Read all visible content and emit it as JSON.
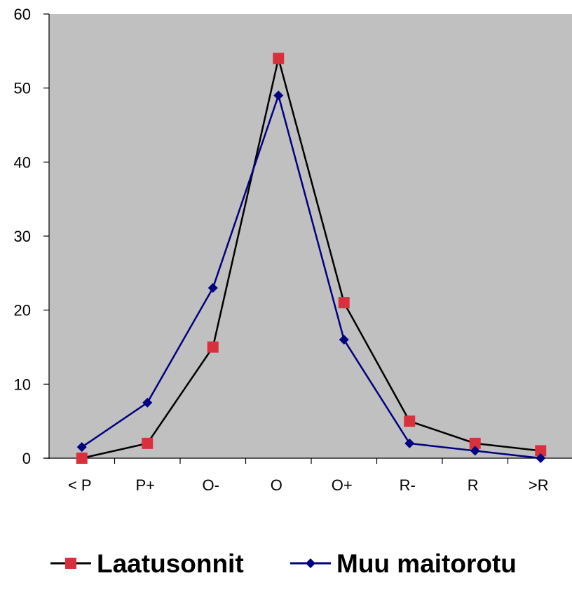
{
  "chart_data": {
    "type": "line",
    "categories": [
      "< P",
      "P+",
      "O-",
      "O",
      "O+",
      "R-",
      "R",
      ">R"
    ],
    "ylim": [
      0,
      60
    ],
    "yticks": [
      0,
      10,
      20,
      30,
      40,
      50,
      60
    ],
    "grid": false,
    "plot_background": "#c0c0c0",
    "legend_position": "bottom",
    "series": [
      {
        "name": "Laatusonnit",
        "values": [
          0,
          2,
          15,
          54,
          21,
          5,
          2,
          1
        ],
        "line_color": "#000000",
        "marker_color": "#d9303e",
        "marker": "square"
      },
      {
        "name": "Muu maitorotu",
        "values": [
          1.5,
          7.5,
          23,
          49,
          16,
          2,
          1,
          0
        ],
        "line_color": "#000080",
        "marker_color": "#000080",
        "marker": "diamond"
      }
    ]
  }
}
